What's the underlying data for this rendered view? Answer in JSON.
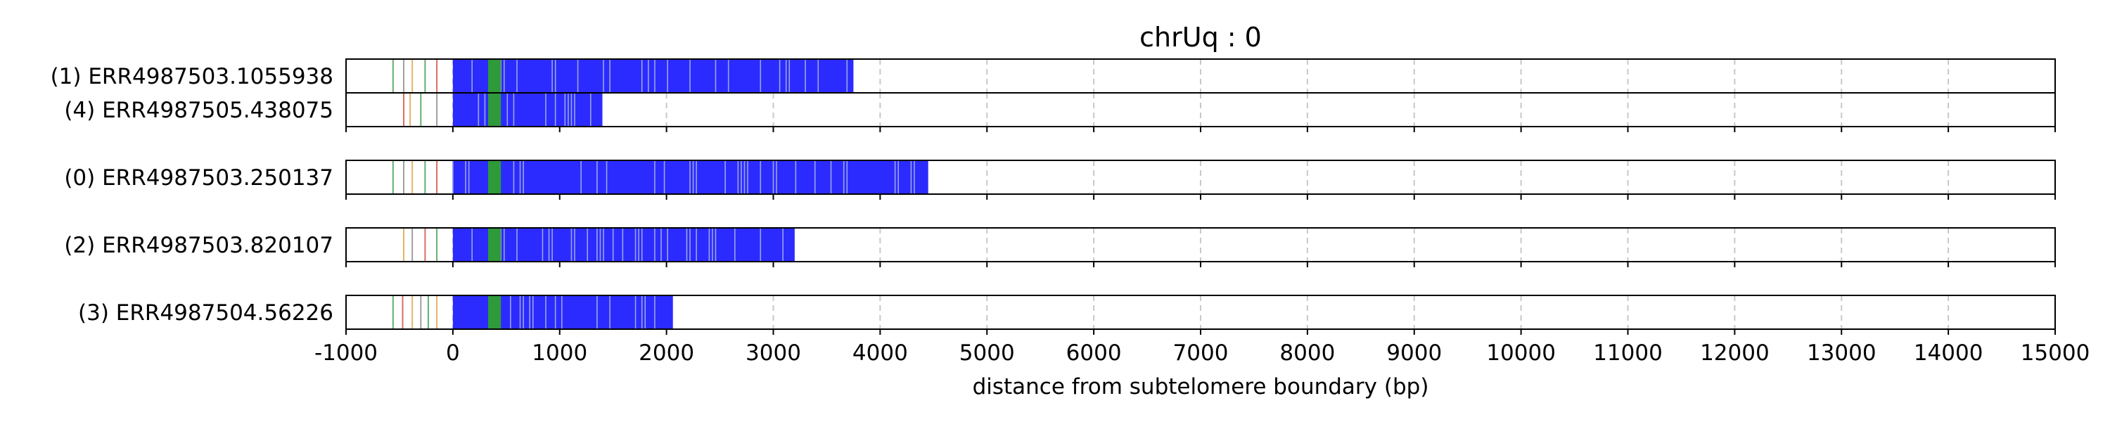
{
  "chart_data": {
    "type": "bar",
    "title": "chrUq : 0",
    "xlabel": "distance from subtelomere boundary (bp)",
    "xlim": [
      -1000,
      15000
    ],
    "xticks": [
      -1000,
      0,
      1000,
      2000,
      3000,
      4000,
      5000,
      6000,
      7000,
      8000,
      9000,
      10000,
      11000,
      12000,
      13000,
      14000,
      15000
    ],
    "grid": "vertical dashed",
    "colors": {
      "repeat": "#2b2bff",
      "repeat_stripe": "#9aa3e8",
      "variant": "#2e9a3a",
      "subtel_green": "#3d9b4a",
      "subtel_red": "#d04a3a",
      "subtel_orange": "#e0a040",
      "subtel_gray": "#888888"
    },
    "groups": [
      {
        "rows": [
          {
            "label": "(1) ERR4987503.1055938",
            "tel_end": 3750,
            "variant_start": 330,
            "variant_end": 450,
            "subtel_marks": [
              {
                "x": -560,
                "c": "subtel_green"
              },
              {
                "x": -460,
                "c": "subtel_gray"
              },
              {
                "x": -380,
                "c": "subtel_orange"
              },
              {
                "x": -260,
                "c": "subtel_green"
              },
              {
                "x": -150,
                "c": "subtel_red"
              }
            ]
          },
          {
            "label": "(4) ERR4987505.438075",
            "tel_end": 1400,
            "variant_start": 330,
            "variant_end": 450,
            "subtel_marks": [
              {
                "x": -460,
                "c": "subtel_red"
              },
              {
                "x": -400,
                "c": "subtel_orange"
              },
              {
                "x": -300,
                "c": "subtel_green"
              },
              {
                "x": -150,
                "c": "subtel_gray"
              }
            ]
          }
        ]
      },
      {
        "rows": [
          {
            "label": "(0) ERR4987503.250137",
            "tel_end": 4450,
            "variant_start": 330,
            "variant_end": 450,
            "subtel_marks": [
              {
                "x": -560,
                "c": "subtel_green"
              },
              {
                "x": -460,
                "c": "subtel_gray"
              },
              {
                "x": -380,
                "c": "subtel_orange"
              },
              {
                "x": -260,
                "c": "subtel_green"
              },
              {
                "x": -150,
                "c": "subtel_red"
              }
            ]
          }
        ]
      },
      {
        "rows": [
          {
            "label": "(2) ERR4987503.820107",
            "tel_end": 3200,
            "variant_start": 330,
            "variant_end": 450,
            "subtel_marks": [
              {
                "x": -460,
                "c": "subtel_orange"
              },
              {
                "x": -380,
                "c": "subtel_gray"
              },
              {
                "x": -260,
                "c": "subtel_red"
              },
              {
                "x": -150,
                "c": "subtel_green"
              }
            ]
          }
        ]
      },
      {
        "rows": [
          {
            "label": "(3) ERR4987504.56226",
            "tel_end": 2060,
            "variant_start": 330,
            "variant_end": 450,
            "subtel_marks": [
              {
                "x": -560,
                "c": "subtel_green"
              },
              {
                "x": -470,
                "c": "subtel_red"
              },
              {
                "x": -380,
                "c": "subtel_orange"
              },
              {
                "x": -300,
                "c": "subtel_gray"
              },
              {
                "x": -230,
                "c": "subtel_green"
              },
              {
                "x": -150,
                "c": "subtel_orange"
              }
            ]
          }
        ]
      }
    ]
  }
}
